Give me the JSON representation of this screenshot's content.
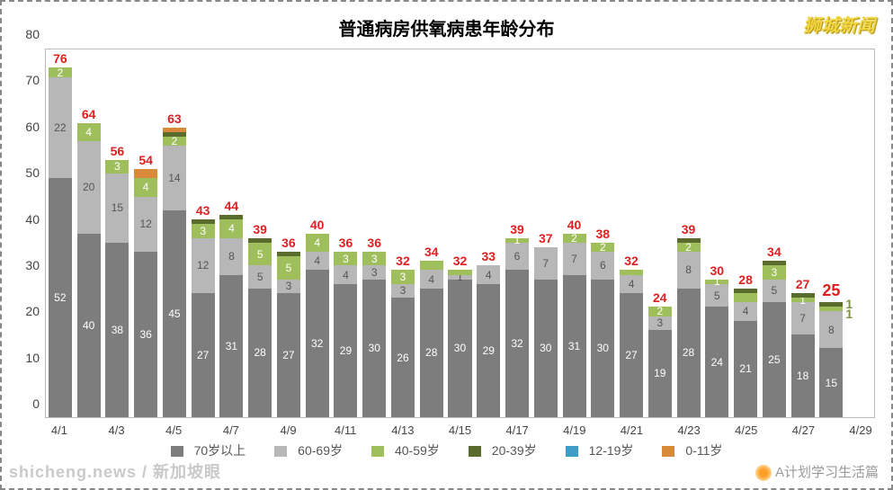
{
  "title": "普通病房供氧病患年龄分布",
  "watermark_top": "狮城新闻",
  "watermark_bl": "shicheng.news / 新加坡眼",
  "watermark_br": "A计划学习生活篇",
  "type": "stacked-bar",
  "ylim": [
    0,
    80
  ],
  "ytick_step": 10,
  "yticks": [
    0,
    10,
    20,
    30,
    40,
    50,
    60,
    70,
    80
  ],
  "title_fontsize": 20,
  "label_fontsize": 14,
  "total_label_color": "#e02020",
  "background_color": "#ffffff",
  "grid_color": "#bbbbbb",
  "bar_width_ratio": 0.82,
  "legend": [
    {
      "label": "70岁以上",
      "color": "#7d7d7d"
    },
    {
      "label": "60-69岁",
      "color": "#b7b7b7"
    },
    {
      "label": "40-59岁",
      "color": "#9fbf5c"
    },
    {
      "label": "20-39岁",
      "color": "#5a6b2e"
    },
    {
      "label": "12-19岁",
      "color": "#3f9ec7"
    },
    {
      "label": "0-11岁",
      "color": "#d88a3a"
    }
  ],
  "x_tick_labels": [
    "4/1",
    "4/3",
    "4/5",
    "4/7",
    "4/9",
    "4/11",
    "4/13",
    "4/15",
    "4/17",
    "4/19",
    "4/21",
    "4/23",
    "4/25",
    "4/27",
    "4/29"
  ],
  "days": [
    {
      "d": "4/1",
      "total": 76,
      "segs": [
        {
          "v": 52,
          "c": 0,
          "l": "52"
        },
        {
          "v": 22,
          "c": 1,
          "l": "22"
        },
        {
          "v": 2,
          "c": 2,
          "l": "2"
        }
      ]
    },
    {
      "d": "4/2",
      "total": 64,
      "segs": [
        {
          "v": 40,
          "c": 0,
          "l": "40"
        },
        {
          "v": 20,
          "c": 1,
          "l": "20"
        },
        {
          "v": 4,
          "c": 2,
          "l": "4"
        }
      ]
    },
    {
      "d": "4/3",
      "total": 56,
      "segs": [
        {
          "v": 38,
          "c": 0,
          "l": "38"
        },
        {
          "v": 15,
          "c": 1,
          "l": "15"
        },
        {
          "v": 3,
          "c": 2,
          "l": "3"
        }
      ]
    },
    {
      "d": "4/4",
      "total": 54,
      "segs": [
        {
          "v": 36,
          "c": 0,
          "l": "36"
        },
        {
          "v": 12,
          "c": 1,
          "l": "12"
        },
        {
          "v": 4,
          "c": 2,
          "l": "4"
        },
        {
          "v": 2,
          "c": 5,
          "l": ""
        }
      ]
    },
    {
      "d": "4/5",
      "total": 63,
      "segs": [
        {
          "v": 45,
          "c": 0,
          "l": "45"
        },
        {
          "v": 14,
          "c": 1,
          "l": "14"
        },
        {
          "v": 2,
          "c": 2,
          "l": "2"
        },
        {
          "v": 1,
          "c": 3,
          "l": ""
        },
        {
          "v": 1,
          "c": 5,
          "l": ""
        }
      ]
    },
    {
      "d": "4/6",
      "total": 43,
      "segs": [
        {
          "v": 27,
          "c": 0,
          "l": "27"
        },
        {
          "v": 12,
          "c": 1,
          "l": "12"
        },
        {
          "v": 3,
          "c": 2,
          "l": "3"
        },
        {
          "v": 1,
          "c": 3,
          "l": ""
        }
      ]
    },
    {
      "d": "4/7",
      "total": 44,
      "segs": [
        {
          "v": 31,
          "c": 0,
          "l": "31"
        },
        {
          "v": 8,
          "c": 1,
          "l": "8"
        },
        {
          "v": 4,
          "c": 2,
          "l": "4"
        },
        {
          "v": 1,
          "c": 3,
          "l": ""
        }
      ]
    },
    {
      "d": "4/8",
      "total": 39,
      "segs": [
        {
          "v": 28,
          "c": 0,
          "l": "28"
        },
        {
          "v": 5,
          "c": 1,
          "l": "5"
        },
        {
          "v": 5,
          "c": 2,
          "l": "5"
        },
        {
          "v": 1,
          "c": 3,
          "l": ""
        }
      ]
    },
    {
      "d": "4/9",
      "total": 36,
      "segs": [
        {
          "v": 27,
          "c": 0,
          "l": "27"
        },
        {
          "v": 3,
          "c": 1,
          "l": "3"
        },
        {
          "v": 5,
          "c": 2,
          "l": "5"
        },
        {
          "v": 1,
          "c": 3,
          "l": ""
        }
      ]
    },
    {
      "d": "4/10",
      "total": 40,
      "segs": [
        {
          "v": 32,
          "c": 0,
          "l": "32"
        },
        {
          "v": 4,
          "c": 1,
          "l": "4"
        },
        {
          "v": 4,
          "c": 2,
          "l": "4"
        }
      ]
    },
    {
      "d": "4/11",
      "total": 36,
      "segs": [
        {
          "v": 29,
          "c": 0,
          "l": "29"
        },
        {
          "v": 4,
          "c": 1,
          "l": "4"
        },
        {
          "v": 3,
          "c": 2,
          "l": "3"
        }
      ]
    },
    {
      "d": "4/12",
      "total": 36,
      "segs": [
        {
          "v": 30,
          "c": 0,
          "l": "30"
        },
        {
          "v": 3,
          "c": 1,
          "l": "3"
        },
        {
          "v": 3,
          "c": 2,
          "l": "3"
        }
      ]
    },
    {
      "d": "4/13",
      "total": 32,
      "segs": [
        {
          "v": 26,
          "c": 0,
          "l": "26"
        },
        {
          "v": 3,
          "c": 1,
          "l": "3"
        },
        {
          "v": 3,
          "c": 2,
          "l": "3"
        }
      ]
    },
    {
      "d": "4/14",
      "total": 34,
      "segs": [
        {
          "v": 28,
          "c": 0,
          "l": "28"
        },
        {
          "v": 4,
          "c": 1,
          "l": "4"
        },
        {
          "v": 2,
          "c": 2,
          "l": ""
        }
      ]
    },
    {
      "d": "4/15",
      "total": 32,
      "segs": [
        {
          "v": 30,
          "c": 0,
          "l": "30"
        },
        {
          "v": 1,
          "c": 1,
          "l": "1"
        },
        {
          "v": 1,
          "c": 2,
          "l": ""
        }
      ]
    },
    {
      "d": "4/16",
      "total": 33,
      "segs": [
        {
          "v": 29,
          "c": 0,
          "l": "29"
        },
        {
          "v": 4,
          "c": 1,
          "l": "4"
        }
      ]
    },
    {
      "d": "4/17",
      "total": 39,
      "segs": [
        {
          "v": 32,
          "c": 0,
          "l": "32"
        },
        {
          "v": 6,
          "c": 1,
          "l": "6"
        },
        {
          "v": 1,
          "c": 2,
          "l": "1"
        }
      ]
    },
    {
      "d": "4/18",
      "total": 37,
      "segs": [
        {
          "v": 30,
          "c": 0,
          "l": "30"
        },
        {
          "v": 7,
          "c": 1,
          "l": "7"
        }
      ]
    },
    {
      "d": "4/19",
      "total": 40,
      "segs": [
        {
          "v": 31,
          "c": 0,
          "l": "31"
        },
        {
          "v": 7,
          "c": 1,
          "l": "7"
        },
        {
          "v": 2,
          "c": 2,
          "l": "2"
        }
      ]
    },
    {
      "d": "4/20",
      "total": 38,
      "segs": [
        {
          "v": 30,
          "c": 0,
          "l": "30"
        },
        {
          "v": 6,
          "c": 1,
          "l": "6"
        },
        {
          "v": 2,
          "c": 2,
          "l": "2"
        }
      ]
    },
    {
      "d": "4/21",
      "total": 32,
      "segs": [
        {
          "v": 27,
          "c": 0,
          "l": "27"
        },
        {
          "v": 4,
          "c": 1,
          "l": "4"
        },
        {
          "v": 1,
          "c": 2,
          "l": ""
        }
      ]
    },
    {
      "d": "4/22",
      "total": 24,
      "segs": [
        {
          "v": 19,
          "c": 0,
          "l": "19"
        },
        {
          "v": 3,
          "c": 1,
          "l": "3"
        },
        {
          "v": 2,
          "c": 2,
          "l": "2"
        }
      ]
    },
    {
      "d": "4/23",
      "total": 39,
      "segs": [
        {
          "v": 28,
          "c": 0,
          "l": "28"
        },
        {
          "v": 8,
          "c": 1,
          "l": "8"
        },
        {
          "v": 2,
          "c": 2,
          "l": "2"
        },
        {
          "v": 1,
          "c": 3,
          "l": ""
        }
      ]
    },
    {
      "d": "4/24",
      "total": 30,
      "segs": [
        {
          "v": 24,
          "c": 0,
          "l": "24"
        },
        {
          "v": 5,
          "c": 1,
          "l": "5"
        },
        {
          "v": 1,
          "c": 2,
          "l": "1"
        }
      ]
    },
    {
      "d": "4/25",
      "total": 28,
      "segs": [
        {
          "v": 21,
          "c": 0,
          "l": "21"
        },
        {
          "v": 4,
          "c": 1,
          "l": "4"
        },
        {
          "v": 2,
          "c": 2,
          "l": ""
        },
        {
          "v": 1,
          "c": 3,
          "l": ""
        }
      ]
    },
    {
      "d": "4/26",
      "total": 34,
      "segs": [
        {
          "v": 25,
          "c": 0,
          "l": "25"
        },
        {
          "v": 5,
          "c": 1,
          "l": "5"
        },
        {
          "v": 3,
          "c": 2,
          "l": "3"
        },
        {
          "v": 1,
          "c": 3,
          "l": ""
        }
      ]
    },
    {
      "d": "4/27",
      "total": 27,
      "segs": [
        {
          "v": 18,
          "c": 0,
          "l": "18"
        },
        {
          "v": 7,
          "c": 1,
          "l": "7"
        },
        {
          "v": 1,
          "c": 2,
          "l": "1"
        },
        {
          "v": 1,
          "c": 3,
          "l": ""
        }
      ]
    },
    {
      "d": "4/28",
      "total": 25,
      "last": true,
      "side": [
        "1",
        "1"
      ],
      "segs": [
        {
          "v": 15,
          "c": 0,
          "l": "15"
        },
        {
          "v": 8,
          "c": 1,
          "l": "8"
        },
        {
          "v": 1,
          "c": 2,
          "l": ""
        },
        {
          "v": 1,
          "c": 3,
          "l": ""
        }
      ]
    }
  ]
}
